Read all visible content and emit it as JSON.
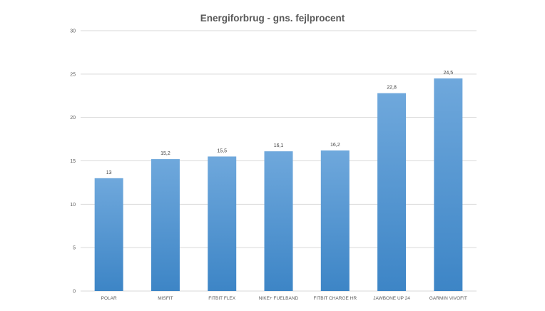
{
  "chart_data": {
    "type": "bar",
    "title": "Energiforbrug - gns. fejlprocent",
    "categories": [
      "POLAR",
      "MISFIT",
      "FITBIT FLEX",
      "NIKE+ FUELBAND",
      "FITBIT CHARGE HR",
      "JAWBONE UP 24",
      "GARMIN VIVOFIT"
    ],
    "values": [
      13,
      15.2,
      15.5,
      16.1,
      16.2,
      22.8,
      24.5
    ],
    "data_labels": [
      "13",
      "15,2",
      "15,5",
      "16,1",
      "16,2",
      "22,8",
      "24,5"
    ],
    "y_ticks": [
      "0",
      "5",
      "10",
      "15",
      "20",
      "25",
      "30"
    ],
    "ylim": [
      0,
      30
    ],
    "xlabel": "",
    "ylabel": "",
    "grid": true,
    "legend": "none",
    "colors": {
      "bar_top": "#6fa8dc",
      "bar_bottom": "#3d85c6",
      "grid": "#d9d9d9",
      "text": "#595959"
    }
  }
}
